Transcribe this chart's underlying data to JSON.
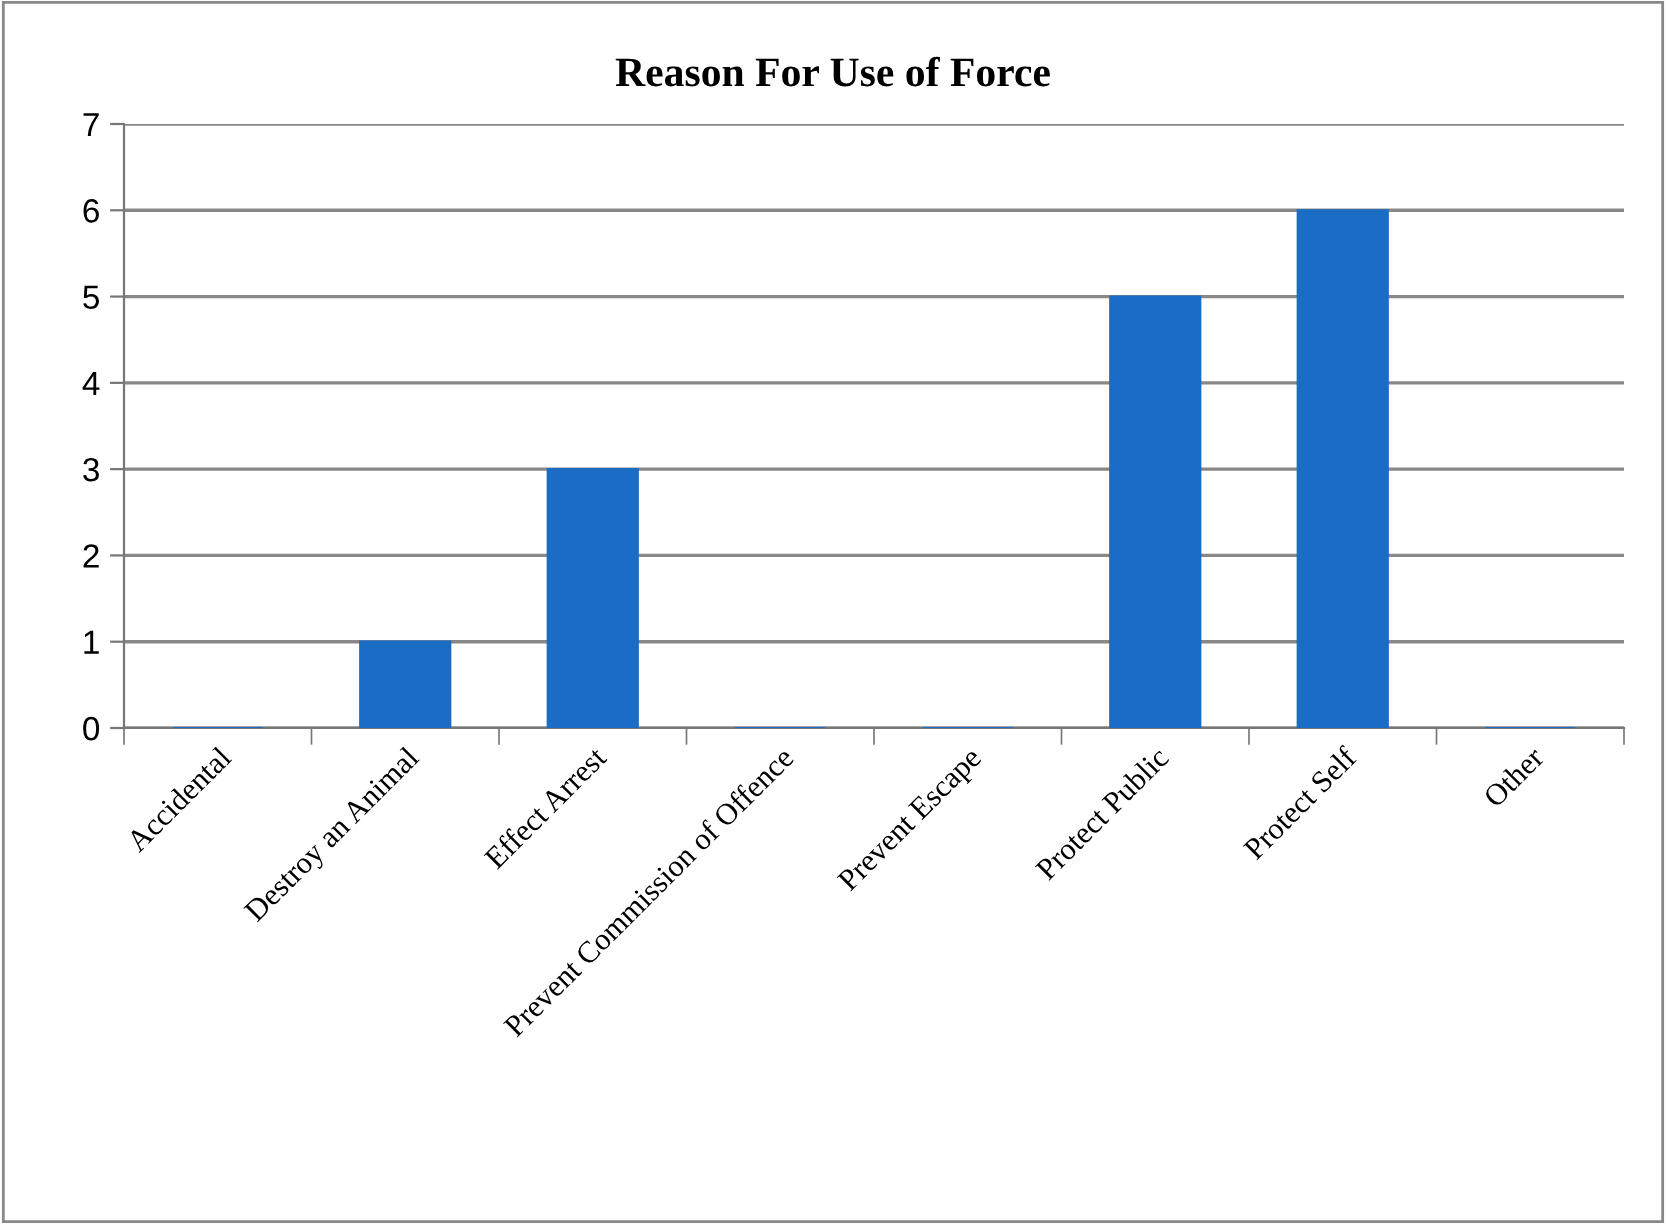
{
  "chart_data": {
    "type": "bar",
    "title": "Reason For Use of Force",
    "categories": [
      "Accidental",
      "Destroy an Animal",
      "Effect Arrest",
      "Prevent Commission of Offence",
      "Prevent Escape",
      "Protect Public",
      "Protect Self",
      "Other"
    ],
    "values": [
      0,
      1,
      3,
      0,
      0,
      5,
      6,
      0
    ],
    "color": "#1a6cc4",
    "ylim": [
      0,
      7
    ],
    "yticks": [
      0,
      1,
      2,
      3,
      4,
      5,
      6,
      7
    ],
    "grid": "y",
    "legend": false
  }
}
